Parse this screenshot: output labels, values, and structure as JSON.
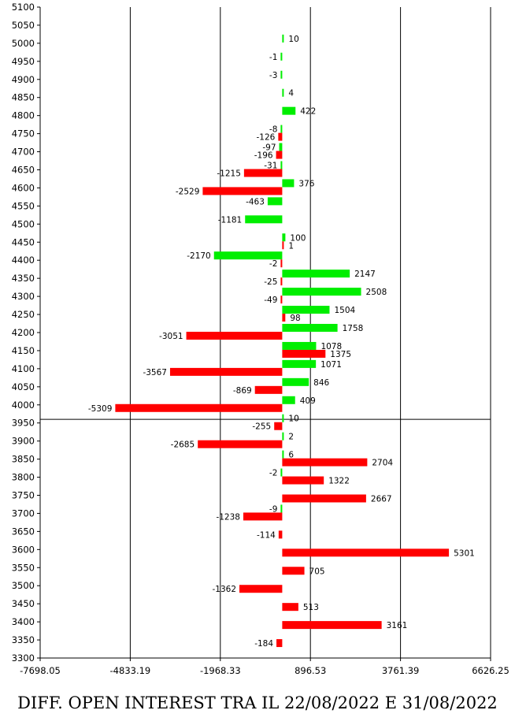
{
  "caption": "DIFF. OPEN INTEREST TRA IL 22/08/2022 E 31/08/2022",
  "colors": {
    "call": "#00ee00",
    "put": "#ff0000",
    "axis": "#000000",
    "background": "#ffffff"
  },
  "chart_data": {
    "type": "bar",
    "orientation": "horizontal",
    "title": "DIFF. OPEN INTEREST TRA IL 22/08/2022 E 31/08/2022",
    "xlim": [
      -7698.05,
      6626.25
    ],
    "x_ticks": [
      "-7698.05",
      "-4833.19",
      "-1968.33",
      "896.53",
      "3761.39",
      "6626.25"
    ],
    "ylim": [
      3300,
      5100
    ],
    "y_ticks": [
      3300,
      3350,
      3400,
      3450,
      3500,
      3550,
      3600,
      3650,
      3700,
      3750,
      3800,
      3850,
      3900,
      3950,
      4000,
      4050,
      4100,
      4150,
      4200,
      4250,
      4300,
      4350,
      4400,
      4450,
      4500,
      4550,
      4600,
      4650,
      4700,
      4750,
      4800,
      4850,
      4900,
      4950,
      5000,
      5050,
      5100
    ],
    "grid": "vertical lines at x ticks",
    "reference_line_y": 3960,
    "series": [
      {
        "color": "#00ee00",
        "points": [
          {
            "strike": 5000,
            "value": 10
          },
          {
            "strike": 4950,
            "value": -1
          },
          {
            "strike": 4900,
            "value": -3
          },
          {
            "strike": 4850,
            "value": 4
          },
          {
            "strike": 4800,
            "value": 422
          },
          {
            "strike": 4750,
            "value": -8
          },
          {
            "strike": 4700,
            "value": -97
          },
          {
            "strike": 4650,
            "value": -31
          },
          {
            "strike": 4600,
            "value": 376
          },
          {
            "strike": 4550,
            "value": -463
          },
          {
            "strike": 4500,
            "value": -1181
          },
          {
            "strike": 4450,
            "value": 100
          },
          {
            "strike": 4400,
            "value": -2170
          },
          {
            "strike": 4350,
            "value": 2147
          },
          {
            "strike": 4300,
            "value": 2508
          },
          {
            "strike": 4250,
            "value": 1504
          },
          {
            "strike": 4200,
            "value": 1758
          },
          {
            "strike": 4150,
            "value": 1078
          },
          {
            "strike": 4100,
            "value": 1071
          },
          {
            "strike": 4050,
            "value": 846
          },
          {
            "strike": 4000,
            "value": 409
          },
          {
            "strike": 3950,
            "value": 10
          },
          {
            "strike": 3900,
            "value": 2
          },
          {
            "strike": 3850,
            "value": 6
          },
          {
            "strike": 3800,
            "value": -2
          },
          {
            "strike": 3700,
            "value": -9
          }
        ]
      },
      {
        "color": "#ff0000",
        "points": [
          {
            "strike": 4750,
            "value": -126
          },
          {
            "strike": 4700,
            "value": -196
          },
          {
            "strike": 4650,
            "value": -1215
          },
          {
            "strike": 4600,
            "value": -2529
          },
          {
            "strike": 4450,
            "value": 1
          },
          {
            "strike": 4400,
            "value": -2
          },
          {
            "strike": 4350,
            "value": -25
          },
          {
            "strike": 4300,
            "value": -49
          },
          {
            "strike": 4250,
            "value": 98
          },
          {
            "strike": 4200,
            "value": -3051
          },
          {
            "strike": 4150,
            "value": 1375
          },
          {
            "strike": 4100,
            "value": -3567
          },
          {
            "strike": 4050,
            "value": -869
          },
          {
            "strike": 4000,
            "value": -5309
          },
          {
            "strike": 3950,
            "value": -255
          },
          {
            "strike": 3900,
            "value": -2685
          },
          {
            "strike": 3850,
            "value": 2704
          },
          {
            "strike": 3800,
            "value": 1322
          },
          {
            "strike": 3750,
            "value": 2667
          },
          {
            "strike": 3700,
            "value": -1238
          },
          {
            "strike": 3650,
            "value": -114
          },
          {
            "strike": 3600,
            "value": 5301
          },
          {
            "strike": 3550,
            "value": 705
          },
          {
            "strike": 3500,
            "value": -1362
          },
          {
            "strike": 3450,
            "value": 513
          },
          {
            "strike": 3400,
            "value": 3161
          },
          {
            "strike": 3350,
            "value": -184
          }
        ]
      }
    ]
  }
}
